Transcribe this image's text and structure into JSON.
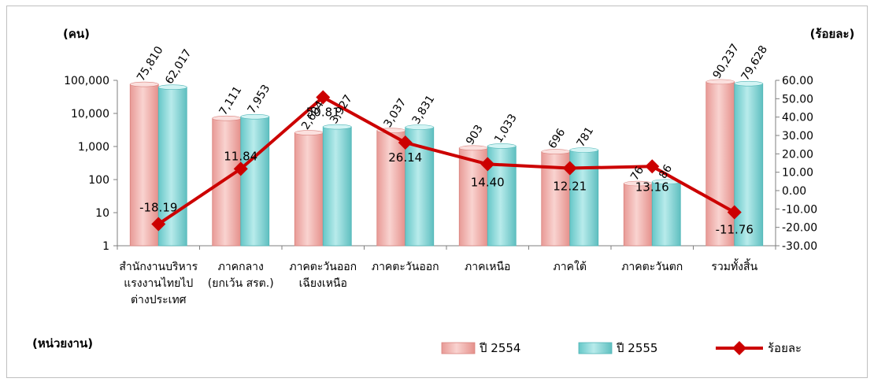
{
  "chart_data": {
    "type": "bar",
    "left_axis_unit": "(คน)",
    "right_axis_unit": "(ร้อยละ)",
    "category_axis_label": "(หน่วยงาน)",
    "categories": [
      [
        "สำนักงานบริหาร",
        "แรงงานไทยไป",
        "ต่างประเทศ"
      ],
      [
        "ภาคกลาง",
        "(ยกเว้น สรต.)"
      ],
      [
        "ภาคตะวันออก",
        "เฉียงเหนือ"
      ],
      [
        "ภาคตะวันออก"
      ],
      [
        "ภาคเหนือ"
      ],
      [
        "ภาคใต้"
      ],
      [
        "ภาคตะวันตก"
      ],
      [
        "รวมทั้งสิ้น"
      ]
    ],
    "y_left": {
      "scale": "log",
      "range": [
        1,
        100000
      ],
      "ticks": [
        "1",
        "10",
        "100",
        "1,000",
        "10,000",
        "100,000"
      ]
    },
    "y_right": {
      "scale": "linear",
      "range": [
        -30,
        60
      ],
      "ticks": [
        "60.00",
        "50.00",
        "40.00",
        "30.00",
        "20.00",
        "10.00",
        "0.00",
        "-10.00",
        "-20.00",
        "-30.00"
      ]
    },
    "series": [
      {
        "name": "ปี 2554",
        "kind": "bar",
        "axis": "left",
        "color": "#f4b6b2",
        "values": [
          75810,
          7111,
          2604,
          3037,
          903,
          696,
          76,
          90237
        ],
        "labels": [
          "75,810",
          "7,111",
          "2,604",
          "3,037",
          "903",
          "696",
          "76",
          "90,237"
        ]
      },
      {
        "name": "ปี 2555",
        "kind": "bar",
        "axis": "left",
        "color": "#8fd8d9",
        "values": [
          62017,
          7953,
          3927,
          3831,
          1033,
          781,
          86,
          79628
        ],
        "labels": [
          "62,017",
          "7,953",
          "3,927",
          "3,831",
          "1,033",
          "781",
          "86",
          "79,628"
        ]
      },
      {
        "name": "ร้อยละ",
        "kind": "line",
        "axis": "right",
        "color": "#cc0000",
        "values": [
          -18.19,
          11.84,
          50.81,
          26.14,
          14.4,
          12.21,
          13.16,
          -11.76
        ],
        "labels": [
          "-18.19",
          "11.84",
          "50.81",
          "26.14",
          "14.40",
          "12.21",
          "13.16",
          "-11.76"
        ]
      }
    ],
    "grid": false,
    "legend_position": "bottom-right"
  }
}
